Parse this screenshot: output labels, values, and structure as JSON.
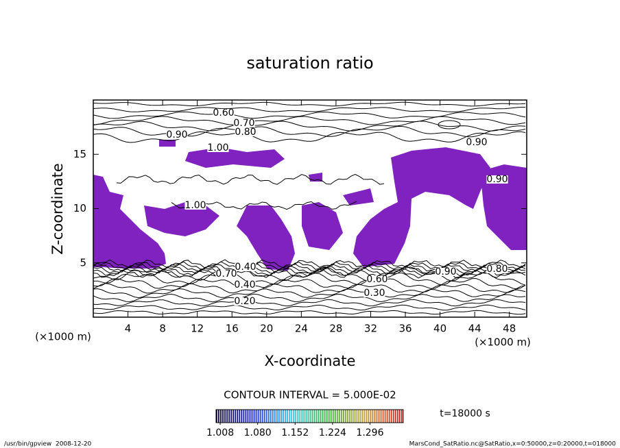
{
  "chart_data": {
    "type": "contour",
    "title": "saturation ratio",
    "x_label": "X-coordinate",
    "y_label": "Z-coordinate",
    "x_unit": "(×1000 m)",
    "y_unit": "(×1000 m)",
    "xlim": [
      0,
      50
    ],
    "ylim": [
      0,
      20
    ],
    "xticks": [
      4,
      8,
      12,
      16,
      20,
      24,
      28,
      32,
      36,
      40,
      44,
      48
    ],
    "yticks": [
      5,
      10,
      15
    ],
    "fill_color": "#7f22bf",
    "contour_labels": [
      "0.60",
      "0.70",
      "0.80",
      "0.90",
      "1.00",
      "0.90",
      "0.90",
      "1.00",
      "0.40",
      "0.70",
      "0.40",
      "0.20",
      "0.60",
      "0.30",
      "0.90",
      "0.80"
    ],
    "contour_interval_text": "CONTOUR INTERVAL = 5.000E-02",
    "colorbar": {
      "lim": [
        1.0,
        1.36
      ],
      "ticks": [
        1.008,
        {
          "value": 1.08,
          "label": "1.080"
        },
        1.152,
        1.224,
        1.296
      ]
    },
    "time_text": "t=18000 s",
    "footer_left": "/usr/bin/gpview  2008-12-20",
    "footer_right": "MarsCond_SatRatio.nc@SatRatio,x=0:50000,z=0:20000,t=018000"
  }
}
